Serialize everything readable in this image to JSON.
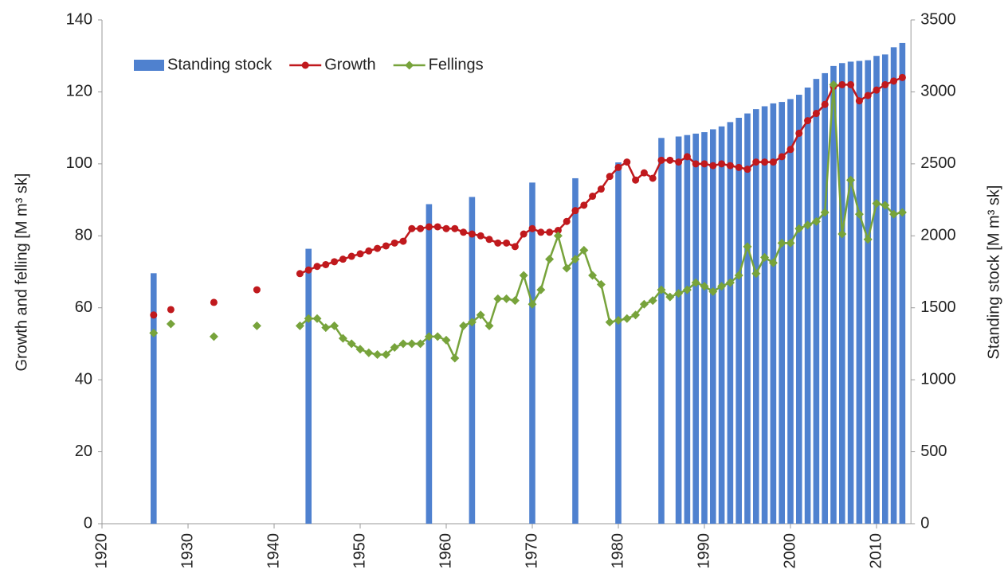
{
  "chart_data": {
    "type": "combo",
    "y_label": "Growth and felling [M m³ sk]",
    "y2_label": "Standing stock [M m³ sk]",
    "xlim": [
      1920,
      2014
    ],
    "xticks": [
      1920,
      1930,
      1940,
      1950,
      1960,
      1970,
      1980,
      1990,
      2000,
      2010
    ],
    "ylim": [
      0,
      140
    ],
    "yticks": [
      0,
      20,
      40,
      60,
      80,
      100,
      120,
      140
    ],
    "y2lim": [
      0,
      3500
    ],
    "y2ticks": [
      0,
      500,
      1000,
      1500,
      2000,
      2500,
      3000,
      3500
    ],
    "legend": "top-left",
    "x": [
      1926,
      1927,
      1928,
      1929,
      1930,
      1931,
      1932,
      1933,
      1934,
      1935,
      1936,
      1937,
      1938,
      1939,
      1940,
      1941,
      1942,
      1943,
      1944,
      1945,
      1946,
      1947,
      1948,
      1949,
      1950,
      1951,
      1952,
      1953,
      1954,
      1955,
      1956,
      1957,
      1958,
      1959,
      1960,
      1961,
      1962,
      1963,
      1964,
      1965,
      1966,
      1967,
      1968,
      1969,
      1970,
      1971,
      1972,
      1973,
      1974,
      1975,
      1976,
      1977,
      1978,
      1979,
      1980,
      1981,
      1982,
      1983,
      1984,
      1985,
      1986,
      1987,
      1988,
      1989,
      1990,
      1991,
      1992,
      1993,
      1994,
      1995,
      1996,
      1997,
      1998,
      1999,
      2000,
      2001,
      2002,
      2003,
      2004,
      2005,
      2006,
      2007,
      2008,
      2009,
      2010,
      2011,
      2012,
      2013
    ],
    "series": [
      {
        "name": "Standing stock",
        "type": "bar",
        "axis": "y2",
        "color": "#4f81cf",
        "x": [
          1926,
          1944,
          1958,
          1963,
          1970,
          1975,
          1980,
          1985,
          1987,
          1988,
          1989,
          1990,
          1991,
          1992,
          1993,
          1994,
          1995,
          1996,
          1997,
          1998,
          1999,
          2000,
          2001,
          2002,
          2003,
          2004,
          2005,
          2006,
          2007,
          2008,
          2009,
          2010,
          2011,
          2012,
          2013
        ],
        "values": [
          1740,
          1910,
          2220,
          2270,
          2370,
          2400,
          2510,
          2680,
          2690,
          2700,
          2710,
          2720,
          2740,
          2760,
          2790,
          2820,
          2850,
          2880,
          2900,
          2920,
          2930,
          2950,
          2980,
          3030,
          3090,
          3130,
          3180,
          3200,
          3210,
          3215,
          3220,
          3250,
          3260,
          3310,
          3340
        ]
      },
      {
        "name": "Growth",
        "type": "line",
        "marker": "circle",
        "color": "#c0191d",
        "values": [
          58,
          null,
          59.5,
          null,
          null,
          null,
          null,
          61.5,
          null,
          null,
          null,
          null,
          65,
          null,
          null,
          null,
          null,
          69.5,
          70.5,
          71.5,
          72,
          72.8,
          73.5,
          74.3,
          75,
          75.8,
          76.5,
          77.2,
          78,
          78.5,
          82,
          82,
          82.5,
          82.5,
          82,
          82,
          81,
          80.5,
          80,
          79,
          78,
          78,
          77,
          80.5,
          82,
          81,
          81,
          81.5,
          84,
          87,
          88.5,
          91,
          93,
          96.5,
          99,
          100.5,
          95.5,
          97.5,
          96,
          101,
          101,
          100.5,
          102,
          100,
          100,
          99.5,
          100,
          99.5,
          99,
          98.5,
          100.5,
          100.5,
          100.5,
          102,
          104,
          108.5,
          112,
          114,
          116.5,
          121.5,
          122,
          122,
          117.5,
          119,
          120.5,
          122,
          123,
          124
        ]
      },
      {
        "name": "Fellings",
        "type": "line",
        "marker": "diamond",
        "color": "#77a33b",
        "values": [
          53,
          null,
          55.5,
          null,
          null,
          null,
          null,
          52,
          null,
          null,
          null,
          null,
          55,
          null,
          null,
          null,
          null,
          55,
          57,
          57,
          54.5,
          55,
          51.5,
          50,
          48.5,
          47.5,
          47,
          47,
          49,
          50,
          50,
          50,
          52,
          52,
          51,
          46,
          55,
          56,
          58,
          55,
          62.5,
          62.5,
          62,
          69,
          61,
          65,
          73.5,
          80,
          71,
          73.5,
          76,
          69,
          66.5,
          56,
          56.5,
          57,
          58,
          61,
          62,
          65,
          63,
          64,
          65,
          67,
          66,
          64.5,
          66,
          67,
          69,
          77,
          69.5,
          74,
          72.5,
          78,
          78,
          82,
          83,
          84,
          86.5,
          122,
          80.5,
          95.5,
          86,
          79,
          89,
          88.5,
          86,
          86.5
        ]
      }
    ]
  }
}
